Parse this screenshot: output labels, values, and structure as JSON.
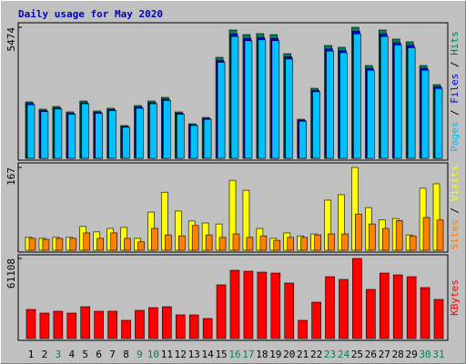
{
  "chart_data": [
    {
      "type": "bar",
      "title": "Daily usage for May 2020",
      "series": [
        {
          "name": "Hits",
          "color": "#00805c",
          "values": [
            2357,
            2053,
            2167,
            1939,
            2395,
            1977,
            2091,
            1368,
            2205,
            2395,
            2547,
            1939,
            1444,
            1711,
            4219,
            5360,
            5170,
            5208,
            5170,
            4372,
            1635,
            2927,
            4714,
            4638,
            5474,
            3877,
            5360,
            4980,
            4866,
            3877,
            3079
          ]
        },
        {
          "name": "Files",
          "color": "#0000ff",
          "values": [
            2290,
            1990,
            2100,
            1880,
            2320,
            1920,
            2030,
            1330,
            2140,
            2320,
            2470,
            1880,
            1400,
            1660,
            4090,
            5200,
            5010,
            5050,
            5010,
            4240,
            1590,
            2840,
            4570,
            4500,
            5310,
            3760,
            5200,
            4830,
            4720,
            3760,
            2990
          ]
        },
        {
          "name": "Pages",
          "color": "#00c0ff",
          "values": [
            2240,
            1950,
            2060,
            1840,
            2280,
            1880,
            1990,
            1300,
            2090,
            2280,
            2420,
            1840,
            1370,
            1630,
            4010,
            5090,
            4910,
            4950,
            4910,
            4150,
            1550,
            2780,
            4480,
            4410,
            5200,
            3680,
            5090,
            4730,
            4620,
            3680,
            2920
          ]
        }
      ],
      "ylim": [
        0,
        5474
      ],
      "yticks": [
        5474
      ],
      "legend_separator": " / "
    },
    {
      "type": "bar",
      "series": [
        {
          "name": "Visits",
          "color": "#ffff00",
          "values": [
            26,
            24,
            26,
            26,
            48,
            37,
            44,
            46,
            24,
            77,
            117,
            79,
            59,
            55,
            53,
            141,
            121,
            44,
            24,
            35,
            29,
            33,
            101,
            112,
            167,
            86,
            61,
            64,
            31,
            125,
            134
          ]
        },
        {
          "name": "Sites",
          "color": "#ff8000",
          "values": [
            24,
            22,
            24,
            24,
            35,
            24,
            35,
            24,
            17,
            44,
            31,
            29,
            50,
            31,
            26,
            33,
            26,
            29,
            20,
            26,
            26,
            31,
            33,
            33,
            73,
            53,
            44,
            60,
            29,
            66,
            61
          ]
        }
      ],
      "ylim": [
        0,
        167
      ],
      "yticks": [
        167
      ],
      "legend_separator": " / "
    },
    {
      "type": "bar",
      "categories": [
        "1",
        "2",
        "3",
        "4",
        "5",
        "6",
        "7",
        "8",
        "9",
        "10",
        "11",
        "12",
        "13",
        "14",
        "15",
        "16",
        "17",
        "18",
        "19",
        "20",
        "21",
        "22",
        "23",
        "24",
        "25",
        "26",
        "27",
        "28",
        "29",
        "30",
        "31"
      ],
      "category_colors": [
        "#000000",
        "#000000",
        "#00805c",
        "#000000",
        "#000000",
        "#000000",
        "#000000",
        "#000000",
        "#00805c",
        "#00805c",
        "#000000",
        "#000000",
        "#000000",
        "#000000",
        "#000000",
        "#00805c",
        "#00805c",
        "#000000",
        "#000000",
        "#000000",
        "#000000",
        "#000000",
        "#00805c",
        "#00805c",
        "#000000",
        "#000000",
        "#000000",
        "#000000",
        "#000000",
        "#00805c",
        "#00805c"
      ],
      "series": [
        {
          "name": "KBytes",
          "color": "#ff0000",
          "values": [
            22208,
            19432,
            20820,
            19432,
            24290,
            20820,
            20820,
            13880,
            21514,
            23596,
            24290,
            18044,
            18044,
            15268,
            40946,
            52050,
            51356,
            50662,
            49968,
            42334,
            13880,
            27760,
            47192,
            45110,
            61108,
            37476,
            49968,
            48580,
            47192,
            38864,
            29838
          ]
        }
      ],
      "ylim": [
        0,
        61108
      ],
      "yticks": [
        61108
      ]
    }
  ]
}
